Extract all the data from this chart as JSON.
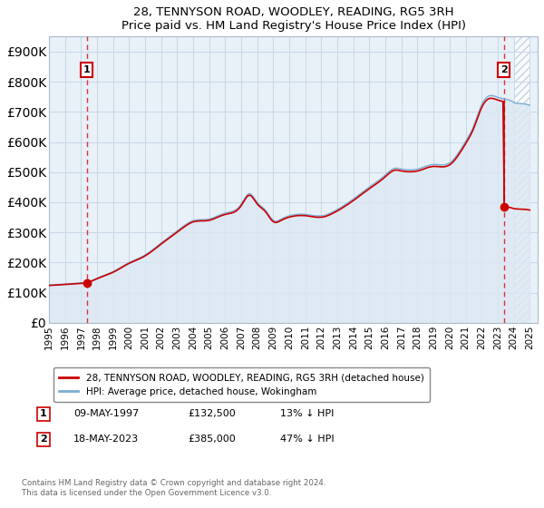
{
  "title": "28, TENNYSON ROAD, WOODLEY, READING, RG5 3RH",
  "subtitle": "Price paid vs. HM Land Registry's House Price Index (HPI)",
  "ylim": [
    0,
    950000
  ],
  "yticks": [
    0,
    100000,
    200000,
    300000,
    400000,
    500000,
    600000,
    700000,
    800000,
    900000
  ],
  "ytick_labels": [
    "£0",
    "£100K",
    "£200K",
    "£300K",
    "£400K",
    "£500K",
    "£600K",
    "£700K",
    "£800K",
    "£900K"
  ],
  "xlim_start": 1995.0,
  "xlim_end": 2025.5,
  "sale1_x": 1997.36,
  "sale1_y": 132500,
  "sale2_x": 2023.38,
  "sale2_y": 385000,
  "legend_line1": "28, TENNYSON ROAD, WOODLEY, READING, RG5 3RH (detached house)",
  "legend_line2": "HPI: Average price, detached house, Wokingham",
  "annotation1_label": "1",
  "annotation2_label": "2",
  "table_row1": [
    "1",
    "09-MAY-1997",
    "£132,500",
    "13% ↓ HPI"
  ],
  "table_row2": [
    "2",
    "18-MAY-2023",
    "£385,000",
    "47% ↓ HPI"
  ],
  "footer": "Contains HM Land Registry data © Crown copyright and database right 2024.\nThis data is licensed under the Open Government Licence v3.0.",
  "sale_color": "#cc0000",
  "hpi_color": "#7aadd4",
  "hpi_fill_color": "#dce8f3",
  "grid_color": "#c8d8e8",
  "background_color": "#e8f0f8",
  "dashed_line_color": "#dd3333",
  "hatch_color": "#b0c4d8"
}
